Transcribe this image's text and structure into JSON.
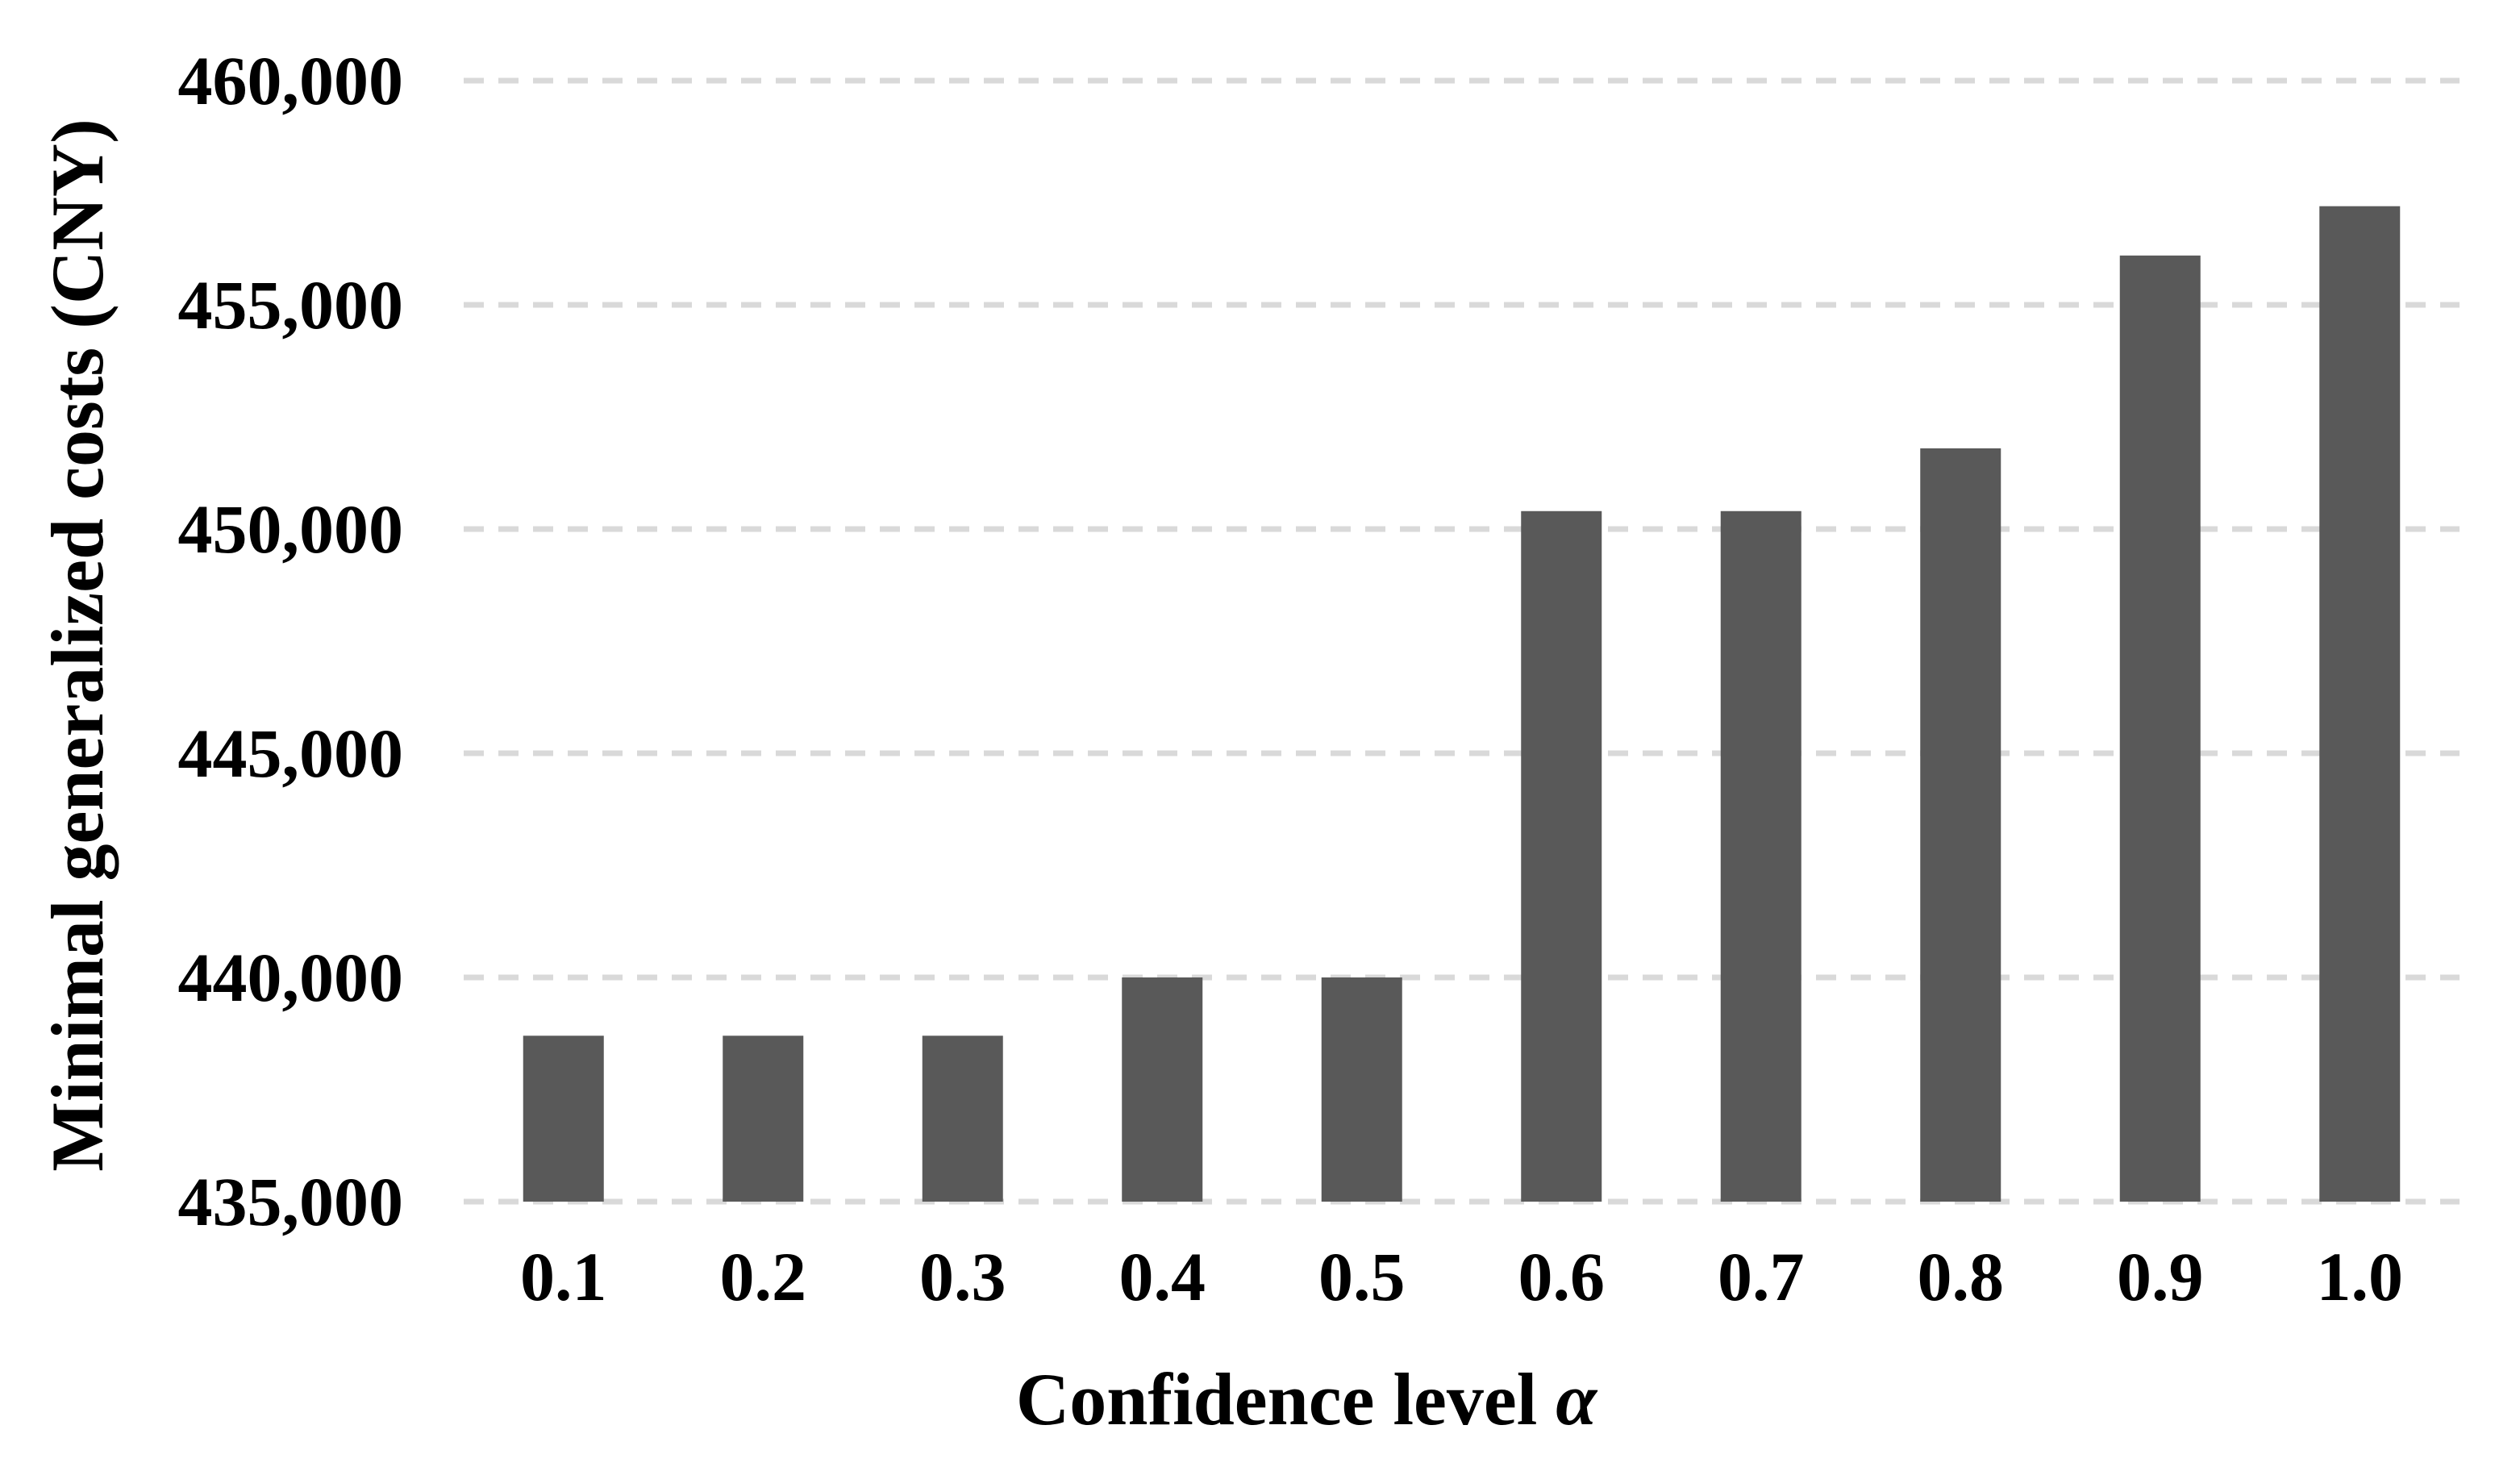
{
  "figure": {
    "background": "#ffffff"
  },
  "chart_data": {
    "type": "bar",
    "title": "",
    "categories": [
      "0.1",
      "0.2",
      "0.3",
      "0.4",
      "0.5",
      "0.6",
      "0.7",
      "0.8",
      "0.9",
      "1.0"
    ],
    "values": [
      438700,
      438700,
      438700,
      440000,
      440000,
      450400,
      450400,
      451800,
      456100,
      457200
    ],
    "xlabel": "Confidence level α",
    "xlabel_prefix": "Confidence level ",
    "xlabel_symbol": "α",
    "ylabel": "Minimal generalized costs (CNY)",
    "ylim": [
      435000,
      460000
    ],
    "ytick_step": 5000,
    "ytick_values": [
      435000,
      440000,
      445000,
      450000,
      455000,
      460000
    ],
    "ytick_labels": [
      "435,000",
      "440,000",
      "445,000",
      "450,000",
      "455,000",
      "460,000"
    ],
    "grid": "horizontal-dashed",
    "legend": "none",
    "colors": {
      "bar": "#595959",
      "gridline": "#d9d9d9",
      "text": "#000000",
      "background": "#ffffff"
    }
  }
}
